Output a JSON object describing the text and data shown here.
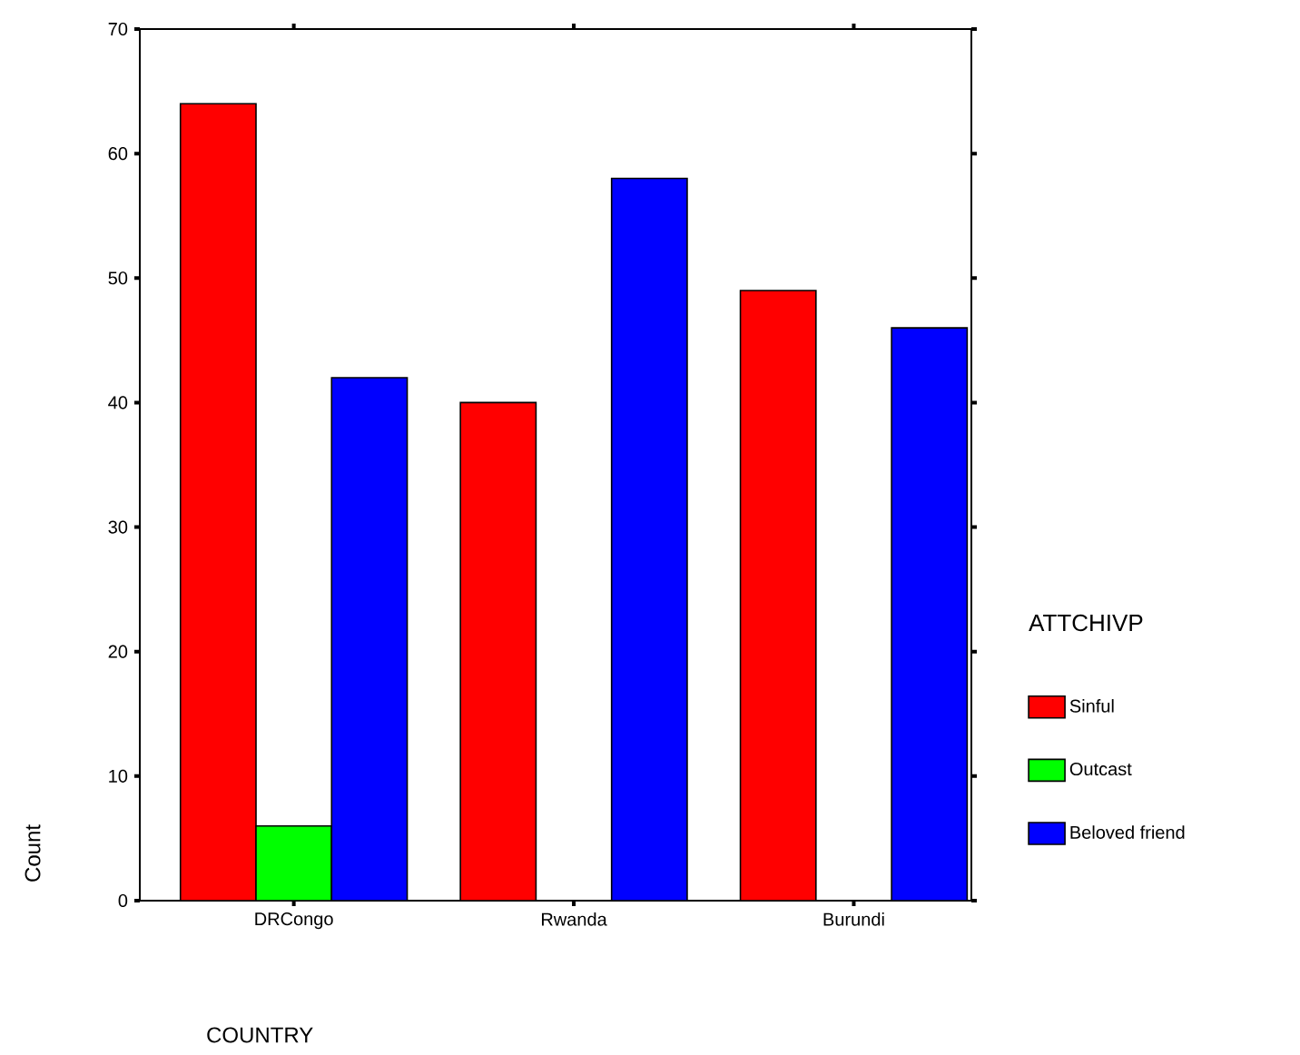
{
  "chart_data": {
    "type": "bar",
    "xlabel": "COUNTRY",
    "ylabel": "Count",
    "legend_title": "ATTCHIVP",
    "categories": [
      "DRCongo",
      "Rwanda",
      "Burundi"
    ],
    "series": [
      {
        "name": "Sinful",
        "color": "#ff0000",
        "values": [
          64,
          40,
          49
        ]
      },
      {
        "name": "Outcast",
        "color": "#00ff00",
        "values": [
          6,
          0,
          0
        ]
      },
      {
        "name": "Beloved friend",
        "color": "#0000ff",
        "values": [
          42,
          58,
          46
        ]
      }
    ],
    "ylim": [
      0,
      70
    ],
    "yticks": [
      0,
      10,
      20,
      30,
      40,
      50,
      60,
      70
    ],
    "grid": false,
    "legend": "right"
  }
}
